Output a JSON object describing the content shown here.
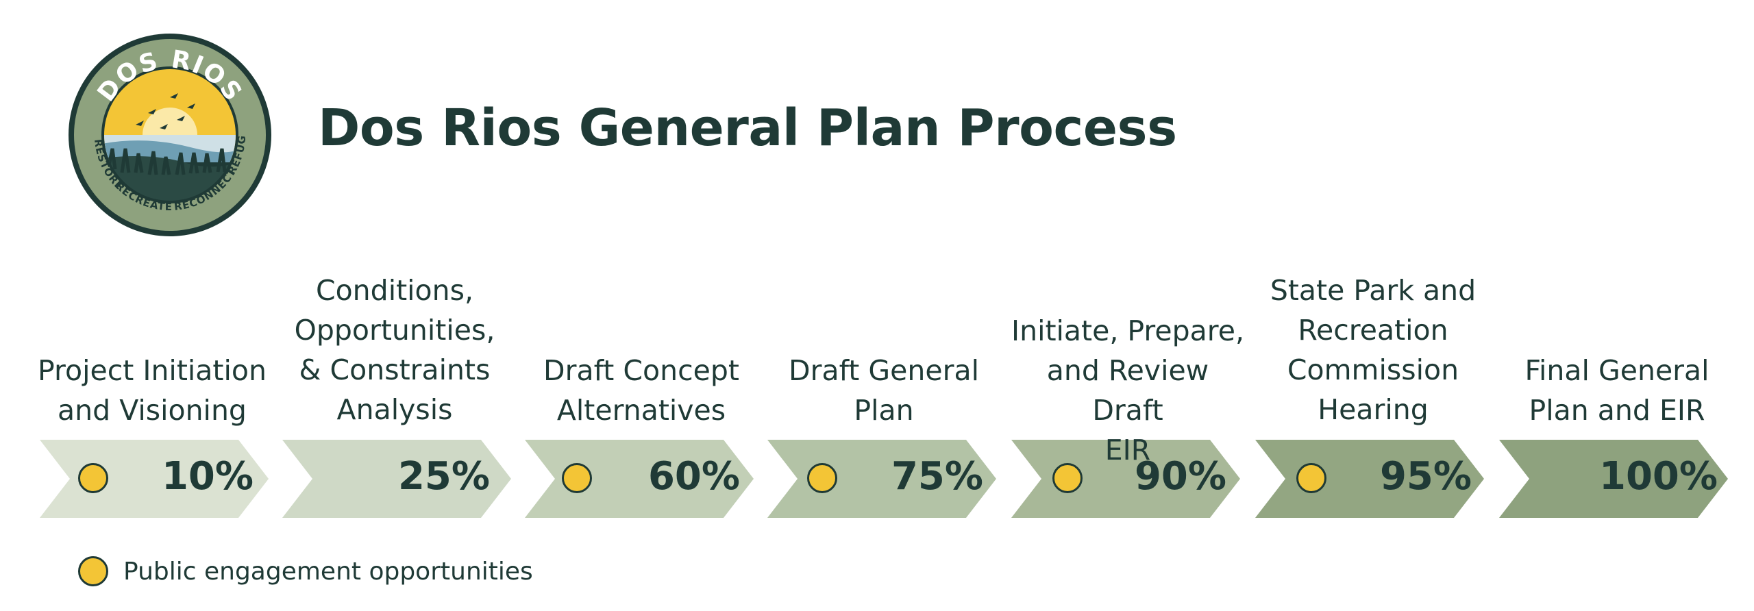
{
  "logo": {
    "top_text": "DOS RIOS",
    "left_text": "RESTORE",
    "bottom_left_text": "RECREATE",
    "bottom_right_text": "RECONNECT",
    "right_text": "REFUGE"
  },
  "title": "Dos Rios General Plan Process",
  "steps": [
    {
      "label": "Project Initiation\nand Visioning",
      "percent": "10%",
      "engagement": true,
      "color": "#dbe2d2"
    },
    {
      "label": "Conditions,\nOpportunities,\n& Constraints\nAnalysis",
      "percent": "25%",
      "engagement": false,
      "color": "#cfd9c6"
    },
    {
      "label": "Draft Concept\nAlternatives",
      "percent": "60%",
      "engagement": true,
      "color": "#c2cfb6"
    },
    {
      "label": "Draft General\nPlan",
      "percent": "75%",
      "engagement": true,
      "color": "#b3c3a6"
    },
    {
      "label": "Initiate, Prepare,\nand Review Draft\nEIR",
      "percent": "90%",
      "engagement": true,
      "color": "#a8b898"
    },
    {
      "label": "State Park and\nRecreation\nCommission\nHearing",
      "percent": "95%",
      "engagement": true,
      "color": "#93a682"
    },
    {
      "label": "Final General\nPlan and EIR",
      "percent": "100%",
      "engagement": false,
      "color": "#8ea27e"
    }
  ],
  "legend": {
    "text": "Public engagement opportunities",
    "dot_color": "#f3c536"
  }
}
